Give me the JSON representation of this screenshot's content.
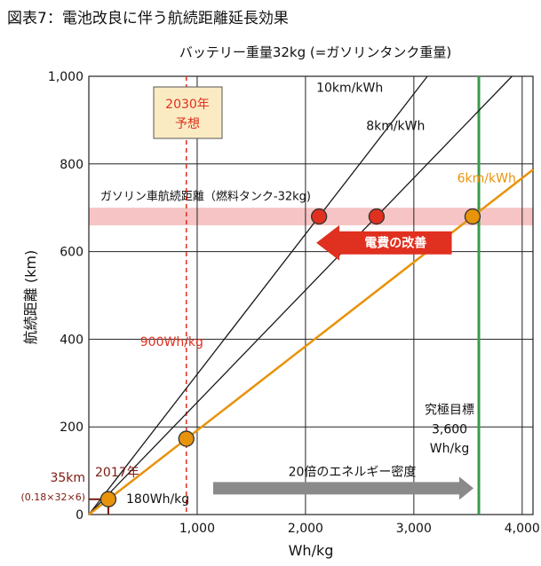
{
  "page_title": "図表7：電池改良に伴う航続距離延長効果",
  "chart_data": {
    "type": "line",
    "title": "バッテリー重量32kg (=ガソリンタンク重量)",
    "xlabel": "Wh/kg",
    "ylabel": "航続距離 (km)",
    "xlim": [
      0,
      4100
    ],
    "ylim": [
      0,
      1000
    ],
    "x_ticks": [
      1000,
      2000,
      3000,
      4000
    ],
    "x_tick_labels": [
      "1,000",
      "2,000",
      "3,000",
      "4,000"
    ],
    "y_ticks": [
      0,
      200,
      400,
      600,
      800,
      1000
    ],
    "y_tick_labels": [
      "0",
      "200",
      "400",
      "600",
      "800",
      "1,000"
    ],
    "grid": true,
    "series": [
      {
        "name": "10km/kWh",
        "efficiency_km_per_kwh": 10,
        "color": "#1a1a1a",
        "x": [
          0,
          3125
        ],
        "y": [
          0,
          1000
        ]
      },
      {
        "name": "8km/kWh",
        "efficiency_km_per_kwh": 8,
        "color": "#1a1a1a",
        "x": [
          0,
          3906
        ],
        "y": [
          0,
          1000
        ]
      },
      {
        "name": "6km/kWh",
        "efficiency_km_per_kwh": 6,
        "color": "#e8930c",
        "x": [
          0,
          4100
        ],
        "y": [
          0,
          787
        ]
      }
    ],
    "points": [
      {
        "x": 180,
        "y": 35,
        "color": "#e8930c",
        "series": "6km/kWh"
      },
      {
        "x": 900,
        "y": 173,
        "color": "#e8930c",
        "series": "6km/kWh"
      },
      {
        "x": 2125,
        "y": 680,
        "color": "#e03020",
        "series": "10km/kWh"
      },
      {
        "x": 2656,
        "y": 680,
        "color": "#e03020",
        "series": "8km/kWh"
      },
      {
        "x": 3542,
        "y": 680,
        "color": "#e8930c",
        "series": "6km/kWh"
      }
    ],
    "gasoline_band": {
      "y_range": [
        660,
        700
      ],
      "label": "ガソリン車航続距離（燃料タンク-32kg)",
      "color": "#f6c4c4"
    },
    "vline_2030": {
      "x": 900,
      "label": "900Wh/kg",
      "color": "#e03020"
    },
    "vline_target": {
      "x": 3600,
      "color": "#3a9a4a"
    },
    "box_2030": {
      "line1": "2030年",
      "line2": "予想"
    },
    "arrow_cost": {
      "label": "電費の改善",
      "color": "#e03020",
      "x_range": [
        2100,
        3350
      ],
      "y": 620
    },
    "arrow_density": {
      "label": "20倍のエネルギー密度",
      "color": "#8a8a8a",
      "x_range": [
        1000,
        3600
      ],
      "y": 60
    },
    "target_text": {
      "line1": "究極目標",
      "line2": "3,600",
      "line3": "Wh/kg"
    },
    "point_2017": {
      "x": 180,
      "y": 35,
      "year_label": "2017年",
      "wh_label": "180Wh/kg",
      "km_label": "35km",
      "km_formula": "(0.18×32×6)",
      "color": "#7a1a10"
    }
  }
}
